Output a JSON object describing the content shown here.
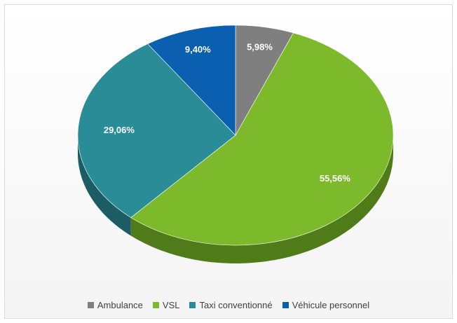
{
  "chart_data": {
    "type": "pie",
    "style": "3d",
    "title": "",
    "legend_position": "bottom",
    "categories": [
      "Ambulance",
      "VSL",
      "Taxi conventionné",
      "Véhicule personnel"
    ],
    "values": [
      5.98,
      55.56,
      29.06,
      9.4
    ],
    "value_labels": [
      "5,98%",
      "55,56%",
      "29,06%",
      "9,40%"
    ],
    "colors": [
      "#7f7f7f",
      "#7cba2c",
      "#2a8c97",
      "#0a5fb0"
    ],
    "side_colors": [
      "#545454",
      "#4f7c19",
      "#1c5c64",
      "#073d73"
    ]
  },
  "legend": {
    "items": [
      {
        "label": "Ambulance",
        "color": "#7f7f7f"
      },
      {
        "label": "VSL",
        "color": "#7cba2c"
      },
      {
        "label": "Taxi conventionné",
        "color": "#2a8c97"
      },
      {
        "label": "Véhicule personnel",
        "color": "#0a5fb0"
      }
    ]
  }
}
